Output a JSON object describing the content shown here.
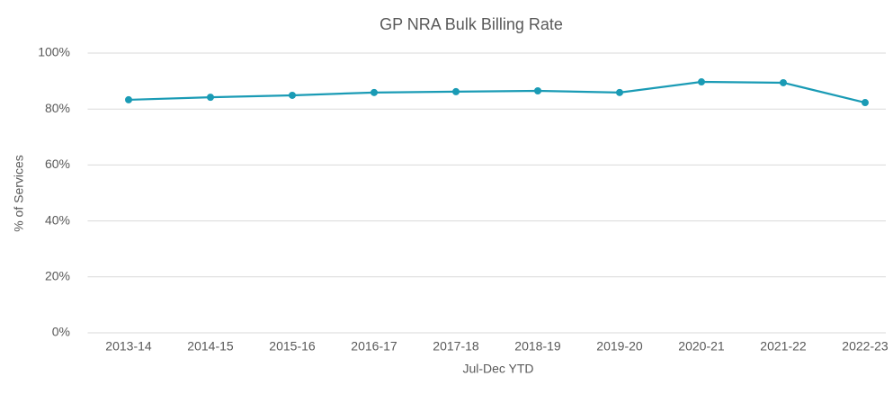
{
  "chart_data": {
    "type": "line",
    "title": "GP NRA Bulk Billing Rate",
    "x_label": "Jul-Dec YTD",
    "y_label": "% of Services",
    "categories": [
      "2013-14",
      "2014-15",
      "2015-16",
      "2016-17",
      "2017-18",
      "2018-19",
      "2019-20",
      "2020-21",
      "2021-22",
      "2022-23"
    ],
    "series": [
      {
        "name": "Bulk Billing Rate",
        "color": "#1a9bb5",
        "values": [
          83.3,
          84.2,
          84.9,
          85.9,
          86.2,
          86.5,
          85.9,
          89.7,
          89.4,
          82.3
        ]
      }
    ],
    "ylim": [
      0,
      100
    ],
    "yticks": [
      {
        "value": 0,
        "label": "0%"
      },
      {
        "value": 20,
        "label": "20%"
      },
      {
        "value": 40,
        "label": "40%"
      },
      {
        "value": 60,
        "label": "60%"
      },
      {
        "value": 80,
        "label": "80%"
      },
      {
        "value": 100,
        "label": "100%"
      }
    ],
    "grid": true
  }
}
